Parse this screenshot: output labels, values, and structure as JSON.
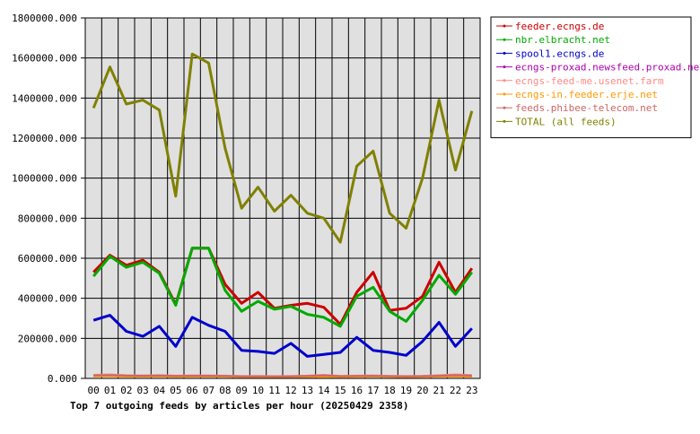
{
  "chart_data": {
    "type": "line",
    "title": "Top 7 outgoing feeds by articles per hour (20250429 2358)",
    "xlabel": "",
    "ylabel": "",
    "x": [
      "00",
      "01",
      "02",
      "03",
      "04",
      "05",
      "06",
      "07",
      "08",
      "09",
      "10",
      "11",
      "12",
      "13",
      "14",
      "15",
      "16",
      "17",
      "18",
      "19",
      "20",
      "21",
      "22",
      "23"
    ],
    "ylim": [
      0,
      1800000
    ],
    "y_ticks": [
      "0.000",
      "200000.000",
      "400000.000",
      "600000.000",
      "800000.000",
      "1000000.000",
      "1200000.000",
      "1400000.000",
      "1600000.000",
      "1800000.000"
    ],
    "y_tick_values": [
      0,
      200000,
      400000,
      600000,
      800000,
      1000000,
      1200000,
      1400000,
      1600000,
      1800000
    ],
    "grid": true,
    "legend_position": "right",
    "series": [
      {
        "name": "feeder.ecngs.de",
        "color": "#cc0000",
        "values": [
          530000,
          615000,
          565000,
          590000,
          530000,
          370000,
          650000,
          650000,
          470000,
          375000,
          430000,
          350000,
          365000,
          375000,
          355000,
          270000,
          430000,
          530000,
          340000,
          350000,
          410000,
          580000,
          430000,
          550000
        ]
      },
      {
        "name": "nbr.elbracht.net",
        "color": "#00aa00",
        "values": [
          510000,
          610000,
          555000,
          580000,
          525000,
          365000,
          650000,
          650000,
          440000,
          335000,
          385000,
          345000,
          360000,
          320000,
          305000,
          260000,
          410000,
          455000,
          335000,
          285000,
          390000,
          515000,
          420000,
          530000
        ]
      },
      {
        "name": "spool1.ecngs.de",
        "color": "#0000cc",
        "values": [
          290000,
          315000,
          235000,
          210000,
          260000,
          160000,
          305000,
          265000,
          235000,
          140000,
          135000,
          125000,
          175000,
          110000,
          120000,
          130000,
          205000,
          140000,
          130000,
          115000,
          185000,
          280000,
          160000,
          250000
        ]
      },
      {
        "name": "ecngs-proxad.newsfeed.proxad.net",
        "color": "#aa00aa",
        "values": [
          12000,
          14000,
          11000,
          10000,
          12000,
          9000,
          10000,
          10000,
          11000,
          8000,
          8000,
          7000,
          8000,
          8000,
          9000,
          8000,
          10000,
          12000,
          9000,
          8000,
          9000,
          11000,
          10000,
          10000
        ]
      },
      {
        "name": "ecngs-feed-me.usenet.farm",
        "color": "#ff8888",
        "values": [
          18000,
          20000,
          16000,
          15000,
          17000,
          14000,
          15000,
          15000,
          14000,
          12000,
          12000,
          11000,
          12000,
          14000,
          18000,
          13000,
          14000,
          15000,
          13000,
          12000,
          13000,
          16000,
          20000,
          17000
        ]
      },
      {
        "name": "ecngs-in.feeder.erje.net",
        "color": "#ff9900",
        "values": [
          10000,
          11000,
          9000,
          9000,
          10000,
          8000,
          9000,
          9000,
          9000,
          7000,
          7000,
          7000,
          7000,
          8000,
          8000,
          7000,
          8000,
          9000,
          8000,
          7000,
          8000,
          9000,
          10000,
          9000
        ]
      },
      {
        "name": "feeds.phibee-telecom.net",
        "color": "#cc6666",
        "values": [
          15000,
          16000,
          14000,
          13000,
          14000,
          12000,
          13000,
          13000,
          12000,
          10000,
          10000,
          10000,
          10000,
          12000,
          15000,
          11000,
          12000,
          13000,
          11000,
          10000,
          11000,
          13000,
          16000,
          14000
        ]
      },
      {
        "name": "TOTAL (all feeds)",
        "color": "#808000",
        "values": [
          1350000,
          1555000,
          1370000,
          1390000,
          1340000,
          910000,
          1620000,
          1575000,
          1150000,
          850000,
          955000,
          835000,
          915000,
          825000,
          800000,
          680000,
          1060000,
          1135000,
          825000,
          750000,
          1000000,
          1390000,
          1040000,
          1335000
        ]
      }
    ]
  }
}
